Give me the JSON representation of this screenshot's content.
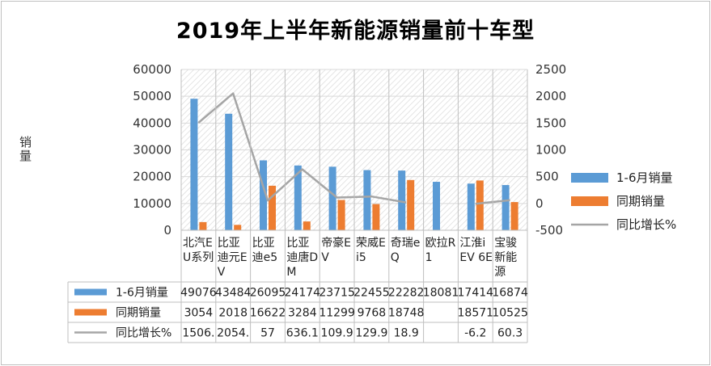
{
  "chart_data": {
    "type": "bar",
    "title": "2019年上半年新能源销量前十车型",
    "ylabel": "销量",
    "ylim": [
      0,
      60000
    ],
    "y2lim": [
      -500,
      2500
    ],
    "yticks": [
      "60000",
      "50000",
      "40000",
      "30000",
      "20000",
      "10000",
      "0"
    ],
    "y2ticks": [
      "2500",
      "2000",
      "1500",
      "1000",
      "500",
      "0",
      "-500"
    ],
    "categories": [
      [
        "北汽E",
        "U系列"
      ],
      [
        "比亚",
        "迪元E",
        "V"
      ],
      [
        "比亚",
        "迪e5"
      ],
      [
        "比亚",
        "迪唐D",
        "M"
      ],
      [
        "帝豪E",
        "V"
      ],
      [
        "荣威E",
        "i5"
      ],
      [
        "奇瑞e",
        "Q"
      ],
      [
        "欧拉R",
        "1"
      ],
      [
        "江淮i",
        "EV 6E"
      ],
      [
        "宝骏",
        "新能",
        "源"
      ]
    ],
    "series": [
      {
        "name": "1-6月销量",
        "color": "#5b9bd5",
        "values": [
          49076,
          43484,
          26095,
          24174,
          23715,
          22455,
          22282,
          18081,
          17414,
          16874
        ],
        "table": [
          "49076",
          "43484",
          "26095",
          "24174",
          "23715",
          "22455",
          "22282",
          "18081",
          "17414",
          "16874"
        ]
      },
      {
        "name": "同期销量",
        "color": "#ed7d31",
        "values": [
          3054,
          2018,
          16622,
          3284,
          11299,
          9768,
          18748,
          null,
          18571,
          10525
        ],
        "table": [
          "3054",
          "2018",
          "16622",
          "3284",
          "11299",
          "9768",
          "18748",
          "",
          "18571",
          "10525"
        ]
      },
      {
        "name": "同比增长%",
        "color": "#a5a5a5",
        "axis": "secondary",
        "values": [
          1506,
          2054,
          57,
          636.1,
          109.9,
          129.9,
          18.9,
          null,
          -6.2,
          60.3
        ],
        "table": [
          "1506.",
          "2054.",
          "57",
          "636.1",
          "109.9",
          "129.9",
          "18.9",
          "",
          "-6.2",
          "60.3"
        ]
      }
    ],
    "legend_position": "right",
    "grid": true
  }
}
